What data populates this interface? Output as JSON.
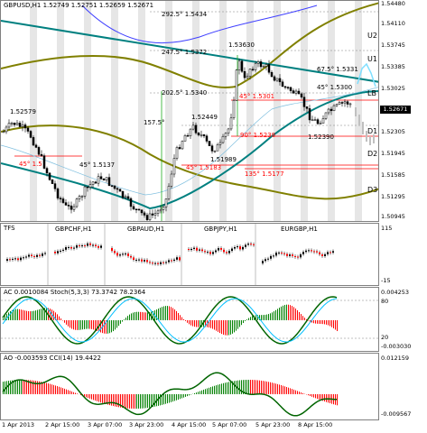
{
  "main": {
    "title": "GBPUSD,H1  1.52749 1.52751 1.52659 1.52671",
    "current_price": "1.52671",
    "price_ticks": [
      "1.54480",
      "1.54110",
      "1.53745",
      "1.53385",
      "1.53025",
      "1.52305",
      "1.51945",
      "1.51585",
      "1.51295",
      "1.50945"
    ],
    "level_labels": [
      "U2",
      "U1",
      "LB",
      "D1",
      "D2",
      "D3"
    ],
    "fib_labels": [
      "292.5° 1.5434",
      "247.5° 1.5372",
      "202.5° 1.5340",
      "157.5°",
      "45° 1.5301",
      "90° 1.5238",
      "45° 1.5183",
      "135° 1.5177",
      "67.5° 1.5331",
      "45° 1.5300",
      "45° 1.5",
      "45° 1.5137"
    ],
    "price_labels": [
      "1.52579",
      "1.52449",
      "1.53630",
      "1.51989",
      "1.52390"
    ]
  },
  "mini": {
    "label_tfs": "TFS",
    "panels": [
      "GBPCHF,H1",
      "GBPAUD,H1",
      "GBPJPY,H1",
      "EURGBP,H1"
    ],
    "ticks": [
      "115",
      "-15"
    ]
  },
  "ac": {
    "title": "AC 0.0010084  Stoch(5,3,3) 73.3742 78.2364",
    "ticks": [
      "0.004253",
      "80",
      "20",
      "-0.003030"
    ]
  },
  "ao": {
    "title": "AO -0.003593  CCI(14) 19.4422",
    "ticks": [
      "0.012159",
      "-0.009567"
    ]
  },
  "xaxis": [
    "1 Apr 2013",
    "2 Apr 15:00",
    "3 Apr 07:00",
    "3 Apr 23:00",
    "4 Apr 15:00",
    "5 Apr 07:00",
    "5 Apr 23:00",
    "8 Apr 15:00"
  ],
  "colors": {
    "teal": "#008080",
    "olive": "#808000",
    "blue": "#0000ff",
    "red": "#ff0000",
    "green": "#008000",
    "cyan": "#00bfff"
  }
}
